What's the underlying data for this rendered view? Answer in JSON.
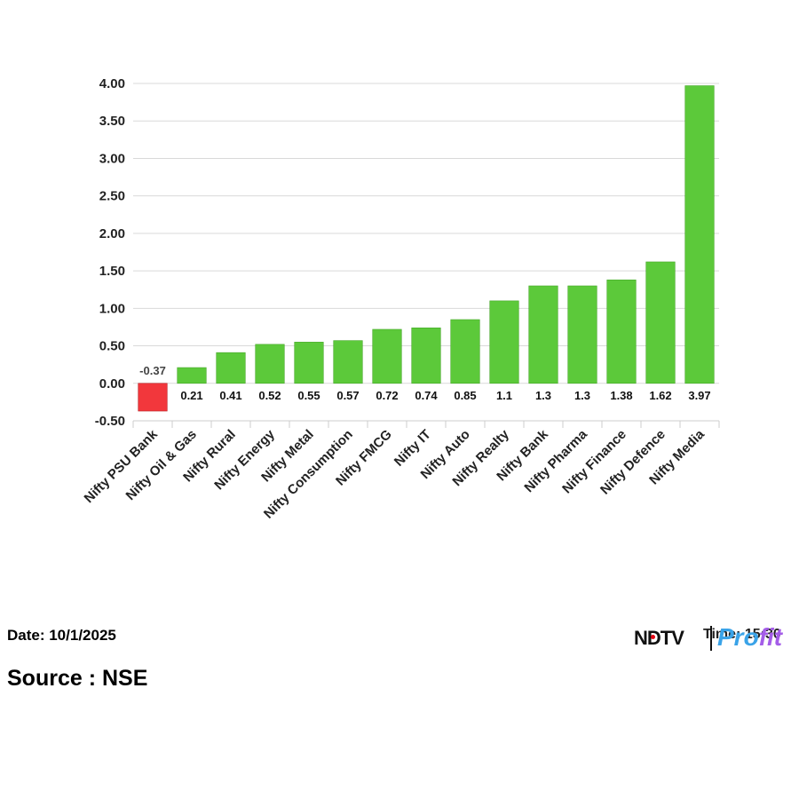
{
  "chart_data": {
    "type": "bar",
    "categories": [
      "Nifty PSU Bank",
      "Nifty Oil & Gas",
      "Nifty Rural",
      "Nifty Energy",
      "Nifty Metal",
      "Nifty Consumption",
      "Nifty FMCG",
      "Nifty IT",
      "Nifty Auto",
      "Nifty Realty",
      "Nifty Bank",
      "Nifty Pharma",
      "Nifty Finance",
      "Nifty Defence",
      "Nifty Media"
    ],
    "values": [
      -0.37,
      0.21,
      0.41,
      0.52,
      0.55,
      0.57,
      0.72,
      0.74,
      0.85,
      1.1,
      1.3,
      1.3,
      1.38,
      1.62,
      3.97
    ],
    "data_labels": [
      "-0.37",
      "0.21",
      "0.41",
      "0.52",
      "0.55",
      "0.57",
      "0.72",
      "0.74",
      "0.85",
      "1.1",
      "1.3",
      "1.3",
      "1.38",
      "1.62",
      "3.97"
    ],
    "yticks": [
      "4.00",
      "3.50",
      "3.00",
      "2.50",
      "2.00",
      "1.50",
      "1.00",
      "0.50",
      "0.00",
      "-0.50"
    ],
    "ylim": [
      -0.5,
      4.0
    ],
    "grid": true,
    "title": "",
    "xlabel": "",
    "ylabel": "",
    "colors": {
      "positive": "#5cc93a",
      "negative": "#f2373c",
      "grid": "#d9d9d9"
    }
  },
  "footer": {
    "date": "Date: 10/1/2025",
    "source": "Source : NSE",
    "time_partial": "Time: 15:30",
    "logo_ndtv": "NDTV",
    "logo_profit_a": "Pro",
    "logo_profit_b": "fit"
  }
}
